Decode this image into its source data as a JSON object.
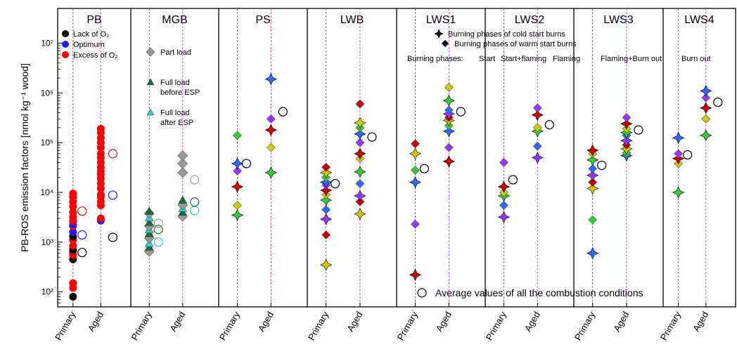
{
  "chart_data": {
    "type": "scatter",
    "yscale": "log",
    "ylim": [
      50,
      50000000
    ],
    "ylabel": "PB-ROS emission factors [nmol kg⁻¹ wood]",
    "y_tick_labels": [
      "10²",
      "10³",
      "10⁴",
      "10⁵",
      "10⁶",
      "10⁷"
    ],
    "x_tick_labels": [
      "Primary",
      "Aged"
    ],
    "grid": false,
    "panels": [
      {
        "name": "PB",
        "primary": [
          80,
          120,
          150,
          450,
          550,
          620,
          700,
          850,
          1100,
          1300,
          1600,
          2100,
          2300,
          2700,
          3200,
          4000,
          5200,
          6500,
          8000,
          9500
        ],
        "aged": [
          2700,
          3000,
          5500,
          6500,
          8000,
          9000,
          12000,
          15000,
          19000,
          23000,
          27000,
          32000,
          40000,
          50000,
          60000,
          80000,
          100000,
          125000,
          160000,
          190000
        ],
        "avg_primary": [
          620,
          1400,
          4200
        ],
        "avg_aged": [
          1250,
          8800,
          60000
        ]
      },
      {
        "name": "MGB",
        "primary": [
          650,
          800,
          950,
          1200,
          1500,
          1800,
          2100,
          2500,
          3100,
          3800,
          4200
        ],
        "aged": [
          3300,
          4000,
          4800,
          5600,
          7000,
          25000,
          38000,
          55000
        ],
        "avg_primary": [
          1000,
          1800,
          2400
        ],
        "avg_aged": [
          4300,
          6400,
          18000
        ]
      },
      {
        "name": "PS",
        "primary": [
          3500,
          5500,
          13000,
          27000,
          38000,
          140000
        ],
        "aged": [
          25000,
          80000,
          180000,
          300000,
          1900000
        ],
        "avg_primary": [
          38000
        ],
        "avg_aged": [
          420000
        ]
      },
      {
        "name": "LWB",
        "primary": [
          350,
          1400,
          2900,
          4500,
          7000,
          9000,
          11000,
          14000,
          16000,
          20000,
          25000,
          32000
        ],
        "aged": [
          3700,
          6500,
          8500,
          15000,
          26000,
          48000,
          60000,
          100000,
          150000,
          200000,
          250000,
          600000
        ],
        "avg_primary": [
          15000
        ],
        "avg_aged": [
          130000
        ]
      },
      {
        "name": "LWS1",
        "primary": [
          220,
          2300,
          16000,
          28000,
          60000,
          95000
        ],
        "aged": [
          42000,
          80000,
          170000,
          220000,
          280000,
          320000,
          380000,
          450000,
          700000,
          1300000
        ],
        "avg_primary": [
          30000
        ],
        "avg_aged": [
          420000
        ]
      },
      {
        "name": "LWS2",
        "primary": [
          3200,
          5500,
          8500,
          10000,
          13000,
          40000
        ],
        "aged": [
          50000,
          85000,
          170000,
          200000,
          360000,
          500000
        ],
        "avg_primary": [
          18000
        ],
        "avg_aged": [
          230000
        ]
      },
      {
        "name": "LWS3",
        "primary": [
          600,
          2800,
          12000,
          16000,
          22000,
          30000,
          45000,
          60000,
          70000
        ],
        "aged": [
          55000,
          62000,
          75000,
          90000,
          110000,
          140000,
          160000,
          190000,
          240000,
          320000
        ],
        "avg_primary": [
          35000
        ],
        "avg_aged": [
          180000
        ]
      },
      {
        "name": "LWS4",
        "primary": [
          10000,
          38000,
          48000,
          60000,
          125000
        ],
        "aged": [
          140000,
          300000,
          500000,
          800000,
          1100000
        ],
        "avg_primary": [
          57000
        ],
        "avg_aged": [
          650000
        ]
      }
    ],
    "legend_pb": [
      {
        "label": "Lack of O₂",
        "color": "#000000"
      },
      {
        "label": "Optimum",
        "color": "#1a1aff"
      },
      {
        "label": "Excess of O₂",
        "color": "#ff0000"
      }
    ],
    "legend_mgb": [
      {
        "label": "Part load",
        "color": "#999999"
      },
      {
        "label": "Full load",
        "label2": "before ESP",
        "color": "#1a6b3a"
      },
      {
        "label": "Full load",
        "label2": "after ESP",
        "color": "#33cccc"
      }
    ],
    "legend_burn": [
      {
        "label": "Burning phases of cold start burns"
      },
      {
        "label": "Burning phases of warm start burns"
      }
    ],
    "phases_title": "Burning phases:",
    "phases": [
      {
        "label": "Start",
        "color": "#9933ff"
      },
      {
        "label": "Start+flaming",
        "color": "#3366ff"
      },
      {
        "label": "Flaming",
        "color": "#33cc33"
      },
      {
        "label": "Flaming+Burn out",
        "color": "#cccc00"
      },
      {
        "label": "Burn out",
        "color": "#cc0000"
      }
    ],
    "avg_label": "Average values of all the combustion conditions"
  }
}
